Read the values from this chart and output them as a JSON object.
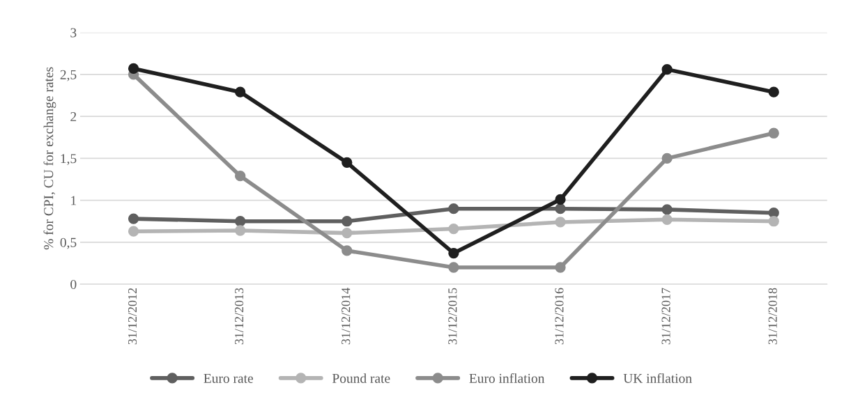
{
  "chart_data": {
    "type": "line",
    "ylabel": "% for CPI, CU for exchange rates",
    "categories": [
      "31/12/2012",
      "31/12/2013",
      "31/12/2014",
      "31/12/2015",
      "31/12/2016",
      "31/12/2017",
      "31/12/2018"
    ],
    "series": [
      {
        "name": "Euro rate",
        "color": "#5f5f5f",
        "values": [
          0.78,
          0.75,
          0.75,
          0.9,
          0.9,
          0.89,
          0.85
        ]
      },
      {
        "name": "Pound rate",
        "color": "#b4b4b4",
        "values": [
          0.63,
          0.64,
          0.61,
          0.66,
          0.74,
          0.77,
          0.75
        ]
      },
      {
        "name": "Euro inflation",
        "color": "#8c8c8c",
        "values": [
          2.5,
          1.29,
          0.4,
          0.2,
          0.2,
          1.5,
          1.8
        ]
      },
      {
        "name": "UK inflation",
        "color": "#1f1f1f",
        "values": [
          2.57,
          2.29,
          1.45,
          0.37,
          1.01,
          2.56,
          2.29
        ]
      }
    ],
    "ylim": [
      0,
      3
    ],
    "yticks": [
      0,
      {
        "value": 0.5,
        "label": "0,5"
      },
      1,
      {
        "value": 1.5,
        "label": "1,5"
      },
      2,
      {
        "value": 2.5,
        "label": "2,5"
      },
      3
    ],
    "grid": "y",
    "legend": "bottom",
    "marker": "circle",
    "line_style": "solid"
  }
}
